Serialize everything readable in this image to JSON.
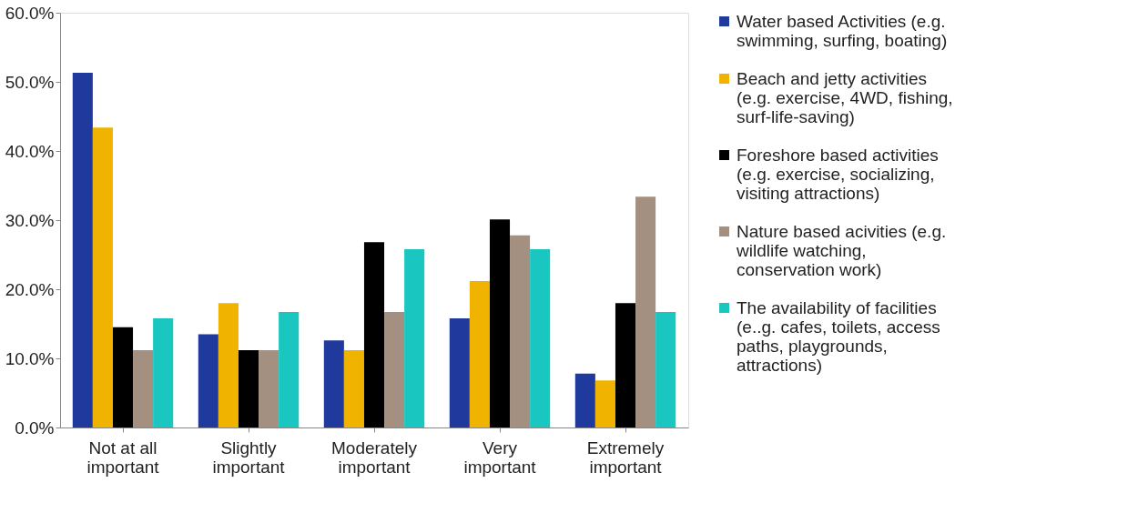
{
  "chart_data": {
    "type": "bar",
    "categories": [
      "Not at all important",
      "Slightly important",
      "Moderately important",
      "Very important",
      "Extremely important"
    ],
    "series": [
      {
        "name": "Water based Activities (e.g. swimming, surfing, boating)",
        "color": "#1f3a9c",
        "values": [
          51.3,
          13.5,
          12.6,
          15.8,
          7.8
        ]
      },
      {
        "name": "Beach and jetty activities (e.g. exercise, 4WD, fishing, surf-life-saving)",
        "color": "#f0b400",
        "values": [
          43.4,
          18.0,
          11.2,
          21.2,
          6.8
        ]
      },
      {
        "name": "Foreshore based activities (e.g. exercise, socializing, visiting attractions)",
        "color": "#000000",
        "values": [
          14.5,
          11.2,
          26.8,
          30.1,
          18.0
        ]
      },
      {
        "name": "Nature based acivities (e.g. wildlife watching, conservation work)",
        "color": "#a39080",
        "values": [
          11.2,
          11.2,
          16.7,
          27.8,
          33.4
        ]
      },
      {
        "name": "The availability of facilities (e..g. cafes, toilets, access paths, playgrounds, attractions)",
        "color": "#1ac6c0",
        "values": [
          15.8,
          16.7,
          25.8,
          25.8,
          16.7
        ]
      }
    ],
    "ylim": [
      0,
      60
    ],
    "yticks": [
      {
        "value": 0,
        "label": "0.0%"
      },
      {
        "value": 10,
        "label": "10.0%"
      },
      {
        "value": 20,
        "label": "20.0%"
      },
      {
        "value": 30,
        "label": "30.0%"
      },
      {
        "value": 40,
        "label": "40.0%"
      },
      {
        "value": 50,
        "label": "50.0%"
      },
      {
        "value": 60,
        "label": "60.0%"
      }
    ],
    "grid": false,
    "legend": "right"
  }
}
